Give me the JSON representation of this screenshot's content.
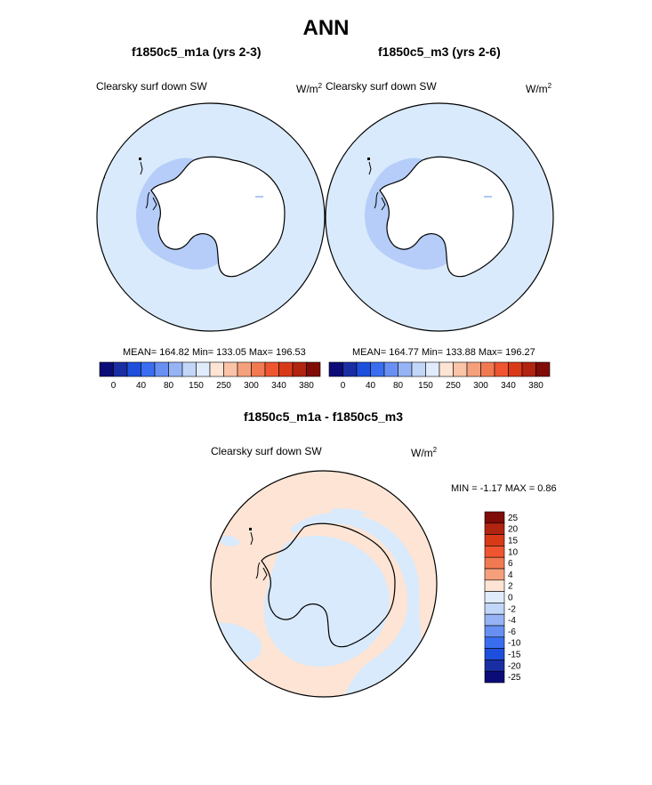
{
  "main_title": "ANN",
  "panels": [
    {
      "title": "f1850c5_m1a (yrs 2-3)",
      "field_label": "Clearsky surf down SW",
      "units_base": "W/m",
      "units_exp": "2",
      "stats": "MEAN= 164.82  Min= 133.05  Max= 196.53"
    },
    {
      "title": "f1850c5_m3 (yrs 2-6)",
      "field_label": "Clearsky surf down SW",
      "units_base": "W/m",
      "units_exp": "2",
      "stats": "MEAN= 164.77  Min= 133.88  Max= 196.27"
    }
  ],
  "diff": {
    "title": "f1850c5_m1a - f1850c5_m3",
    "field_label": "Clearsky surf down SW",
    "units_base": "W/m",
    "units_exp": "2",
    "minmax": "MIN =  -1.17 MAX =   0.86"
  },
  "colorbar_h": {
    "colors": [
      "#0c0c78",
      "#1a2ea4",
      "#1e4fdc",
      "#3a6ef0",
      "#6890f2",
      "#96b4f4",
      "#c2d6f8",
      "#e0ecfb",
      "#fde4d4",
      "#f9c4a8",
      "#f5a07c",
      "#f27a52",
      "#ee5530",
      "#d83a18",
      "#b02410",
      "#800c08"
    ],
    "tick_labels": [
      "0",
      "40",
      "80",
      "150",
      "250",
      "300",
      "340",
      "380"
    ]
  },
  "colorbar_v": {
    "colors": [
      "#800c08",
      "#b02410",
      "#d83a18",
      "#ee5530",
      "#f27a52",
      "#f5a07c",
      "#fde4d4",
      "#e0ecfb",
      "#c2d6f8",
      "#96b4f4",
      "#6890f2",
      "#3a6ef0",
      "#1e4fdc",
      "#1a2ea4",
      "#0c0c78"
    ],
    "tick_labels": [
      "25",
      "20",
      "15",
      "10",
      "6",
      "4",
      "2",
      "0",
      "-2",
      "-4",
      "-6",
      "-10",
      "-15",
      "-20",
      "-25"
    ]
  },
  "map_colors": {
    "ocean_light": "#d9eafc",
    "low_region": "#b5cdf8",
    "diff_positive": "#fde4d4",
    "diff_negative": "#d9eafc"
  }
}
